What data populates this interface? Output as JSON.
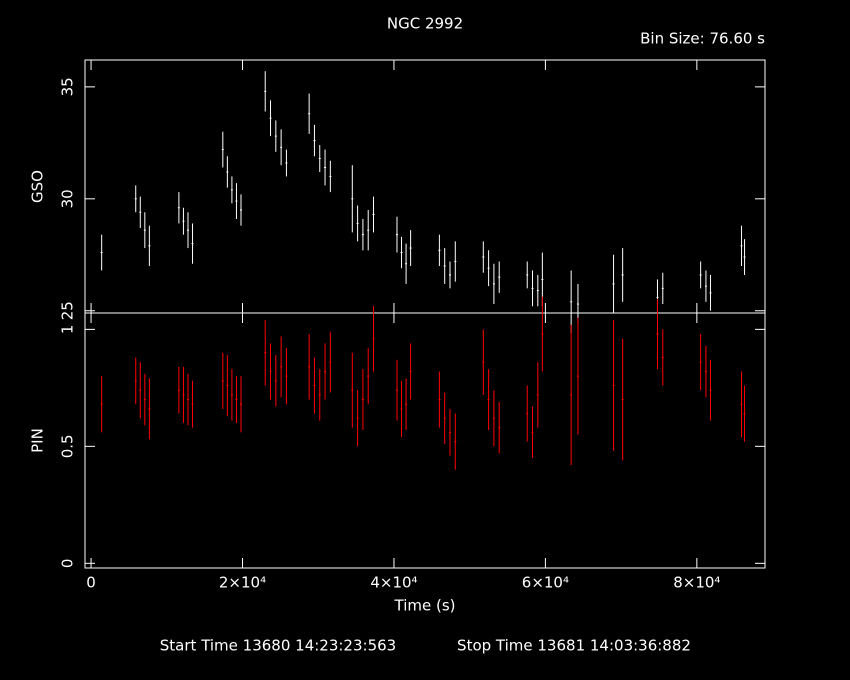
{
  "header": {
    "title": "NGC 2992",
    "bin_size": "Bin Size: 76.60 s",
    "start_time": "Start Time 13680 14:23:23:563",
    "stop_time": "Stop Time 13681 14:03:36:882"
  },
  "chart_data": [
    {
      "type": "errorbar",
      "y_label": "GSO",
      "color": "#ffffff",
      "x": [
        1400,
        5900,
        6500,
        7100,
        7700,
        11600,
        12200,
        12800,
        13400,
        17400,
        18000,
        18600,
        19200,
        19800,
        23000,
        23700,
        24400,
        25100,
        25800,
        28800,
        29500,
        30200,
        30900,
        31600,
        34500,
        35200,
        35900,
        36600,
        37300,
        40400,
        41000,
        41600,
        42200,
        46000,
        46700,
        47400,
        48100,
        51800,
        52500,
        53200,
        53900,
        57600,
        58300,
        59000,
        59600,
        63400,
        64300,
        69000,
        70200,
        74800,
        75500,
        80500,
        81200,
        81800,
        85900,
        86300
      ],
      "values": [
        27.6,
        30.0,
        29.4,
        28.6,
        27.9,
        29.6,
        29.0,
        28.6,
        28.0,
        32.2,
        31.2,
        30.4,
        29.9,
        29.5,
        34.8,
        33.6,
        32.8,
        32.3,
        31.6,
        33.8,
        32.6,
        31.8,
        31.4,
        31.0,
        30.0,
        28.9,
        28.4,
        28.6,
        29.3,
        28.4,
        27.6,
        27.1,
        27.8,
        27.7,
        27.0,
        26.6,
        27.2,
        27.4,
        26.9,
        26.2,
        26.5,
        26.6,
        26.0,
        25.9,
        26.4,
        25.4,
        25.3,
        26.2,
        26.6,
        25.6,
        26.0,
        26.6,
        26.1,
        25.8,
        27.9,
        27.4
      ],
      "errors": [
        0.8,
        0.6,
        0.7,
        0.8,
        0.9,
        0.7,
        0.6,
        0.8,
        0.9,
        0.8,
        0.7,
        0.6,
        0.8,
        0.7,
        0.9,
        0.8,
        0.7,
        0.8,
        0.6,
        0.9,
        0.7,
        0.6,
        0.8,
        0.7,
        1.5,
        0.8,
        0.7,
        0.9,
        0.8,
        0.8,
        0.7,
        0.9,
        0.8,
        0.7,
        0.8,
        0.6,
        0.9,
        0.7,
        0.8,
        0.9,
        0.7,
        0.6,
        0.8,
        0.7,
        1.2,
        1.4,
        0.9,
        1.3,
        1.2,
        0.8,
        0.7,
        0.6,
        0.7,
        0.8,
        0.9,
        0.8
      ],
      "xlim": [
        -800,
        89000
      ],
      "xticks": [
        0,
        20000,
        40000,
        60000,
        80000
      ],
      "ylim": [
        24.9,
        36.2
      ],
      "yticks": [
        25,
        30,
        35
      ]
    },
    {
      "type": "errorbar",
      "y_label": "PIN",
      "x_label": "Time (s)",
      "color": "#ff0000",
      "x": [
        1400,
        5900,
        6500,
        7100,
        7700,
        11600,
        12200,
        12800,
        13400,
        17400,
        18000,
        18600,
        19200,
        19800,
        23000,
        23700,
        24400,
        25100,
        25800,
        28800,
        29500,
        30200,
        30900,
        31600,
        34500,
        35200,
        35900,
        36600,
        37300,
        40400,
        41000,
        41600,
        42200,
        46000,
        46700,
        47400,
        48100,
        51800,
        52500,
        53200,
        53900,
        57600,
        58300,
        59000,
        59600,
        63400,
        64300,
        69000,
        70200,
        74800,
        75500,
        80500,
        81200,
        81800,
        85900,
        86300
      ],
      "values": [
        0.68,
        0.78,
        0.74,
        0.7,
        0.66,
        0.74,
        0.72,
        0.7,
        0.68,
        0.78,
        0.76,
        0.72,
        0.7,
        0.68,
        0.9,
        0.82,
        0.78,
        0.84,
        0.8,
        0.84,
        0.76,
        0.72,
        0.82,
        0.86,
        0.74,
        0.62,
        0.7,
        0.8,
        0.96,
        0.74,
        0.66,
        0.68,
        0.82,
        0.7,
        0.62,
        0.56,
        0.52,
        0.86,
        0.7,
        0.62,
        0.58,
        0.64,
        0.56,
        0.72,
        0.98,
        0.72,
        0.8,
        0.76,
        0.7,
        0.98,
        0.88,
        0.86,
        0.82,
        0.74,
        0.68,
        0.64
      ],
      "errors": [
        0.12,
        0.1,
        0.12,
        0.11,
        0.13,
        0.1,
        0.12,
        0.11,
        0.1,
        0.12,
        0.13,
        0.11,
        0.1,
        0.12,
        0.14,
        0.12,
        0.11,
        0.13,
        0.12,
        0.14,
        0.12,
        0.11,
        0.12,
        0.13,
        0.16,
        0.12,
        0.13,
        0.12,
        0.14,
        0.13,
        0.12,
        0.11,
        0.12,
        0.12,
        0.11,
        0.1,
        0.12,
        0.14,
        0.13,
        0.12,
        0.11,
        0.12,
        0.11,
        0.14,
        0.16,
        0.3,
        0.25,
        0.28,
        0.26,
        0.15,
        0.12,
        0.12,
        0.11,
        0.13,
        0.14,
        0.12
      ],
      "xlim": [
        -800,
        89000
      ],
      "xticks": [
        0,
        {
          "value": 20000,
          "label": "2×10⁴"
        },
        {
          "value": 40000,
          "label": "4×10⁴"
        },
        {
          "value": 60000,
          "label": "6×10⁴"
        },
        {
          "value": 80000,
          "label": "8×10⁴"
        }
      ],
      "ylim": [
        -0.02,
        1.07
      ],
      "yticks": [
        0,
        0.5,
        1
      ]
    }
  ]
}
